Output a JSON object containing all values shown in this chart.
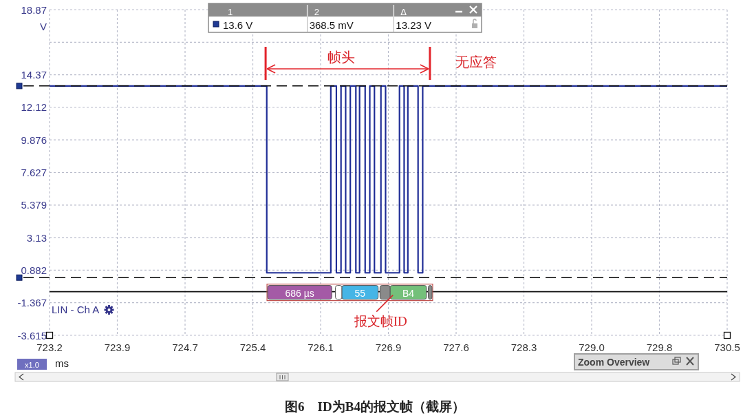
{
  "chart_data": [
    {
      "type": "step",
      "title": "图6　ID为B4的报文帧（截屏）",
      "xlabel": "ms",
      "ylabel": "V",
      "xlim": [
        723.2,
        730.5
      ],
      "ylim": [
        -3.615,
        18.87
      ],
      "xticks": [
        723.2,
        {
          "value": 723.93,
          "label": "723.9"
        },
        {
          "value": 724.66,
          "label": "724.7"
        },
        {
          "value": 725.39,
          "label": "725.4"
        },
        {
          "value": 726.12,
          "label": "726.1"
        },
        {
          "value": 726.85,
          "label": "726.9"
        },
        {
          "value": 727.58,
          "label": "727.6"
        },
        {
          "value": 728.31,
          "label": "728.3"
        },
        {
          "value": 729.04,
          "label": "729.0"
        },
        {
          "value": 729.77,
          "label": "729.8"
        },
        730.5
      ],
      "yticks": [
        18.87,
        {
          "value": 16.62,
          "label": null
        },
        14.37,
        12.12,
        9.876,
        7.627,
        5.379,
        3.13,
        0.882,
        -1.367,
        -3.615
      ],
      "grid": true,
      "series": [
        {
          "color": "#1f2d96",
          "x": [
            723.2,
            725.54,
            726.23,
            726.29,
            726.34,
            726.39,
            726.44,
            726.5,
            726.54,
            726.6,
            726.65,
            726.7,
            726.77,
            726.82,
            726.97,
            727.02,
            727.06,
            727.17,
            727.22,
            730.5
          ],
          "values": [
            13.6,
            0.7,
            13.6,
            0.7,
            13.6,
            0.7,
            13.6,
            0.7,
            13.6,
            0.7,
            13.6,
            0.7,
            13.6,
            0.7,
            13.6,
            0.7,
            13.6,
            0.7,
            13.6,
            13.6
          ]
        }
      ],
      "ref_lines": [
        {
          "axis": "y",
          "value": 13.6,
          "color": "#000000",
          "line_style": "dashed"
        },
        {
          "axis": "y",
          "value": 0.3685,
          "color": "#000000",
          "line_style": "dashed"
        },
        {
          "axis": "y",
          "value": -0.6,
          "color": "#111111",
          "line_style": "solid"
        }
      ],
      "bands": [
        {
          "axis": "x",
          "from": 725.55,
          "to": 726.24,
          "label": "686 µs",
          "color": "#a45aa6"
        },
        {
          "axis": "x",
          "from": 726.28,
          "to": 726.35,
          "color": "#ffffff"
        },
        {
          "axis": "x",
          "from": 726.35,
          "to": 726.74,
          "label": "55",
          "color": "#45b5e6"
        },
        {
          "axis": "x",
          "from": 726.76,
          "to": 726.87,
          "color": "#8a8a8a"
        },
        {
          "axis": "x",
          "from": 726.87,
          "to": 727.26,
          "label": "B4",
          "color": "#74c07a"
        },
        {
          "axis": "x",
          "from": 727.28,
          "to": 727.32,
          "color": "#8a8a8a"
        }
      ],
      "annotations": [
        "帧头",
        "无应答",
        "报文帧ID",
        "LIN - Ch A",
        "x1.0",
        "Zoom Overview"
      ]
    },
    {
      "type": "other",
      "annotations": [
        "1",
        "2",
        "Δ",
        "13.6 V",
        "368.5 mV",
        "13.23 V"
      ]
    }
  ]
}
